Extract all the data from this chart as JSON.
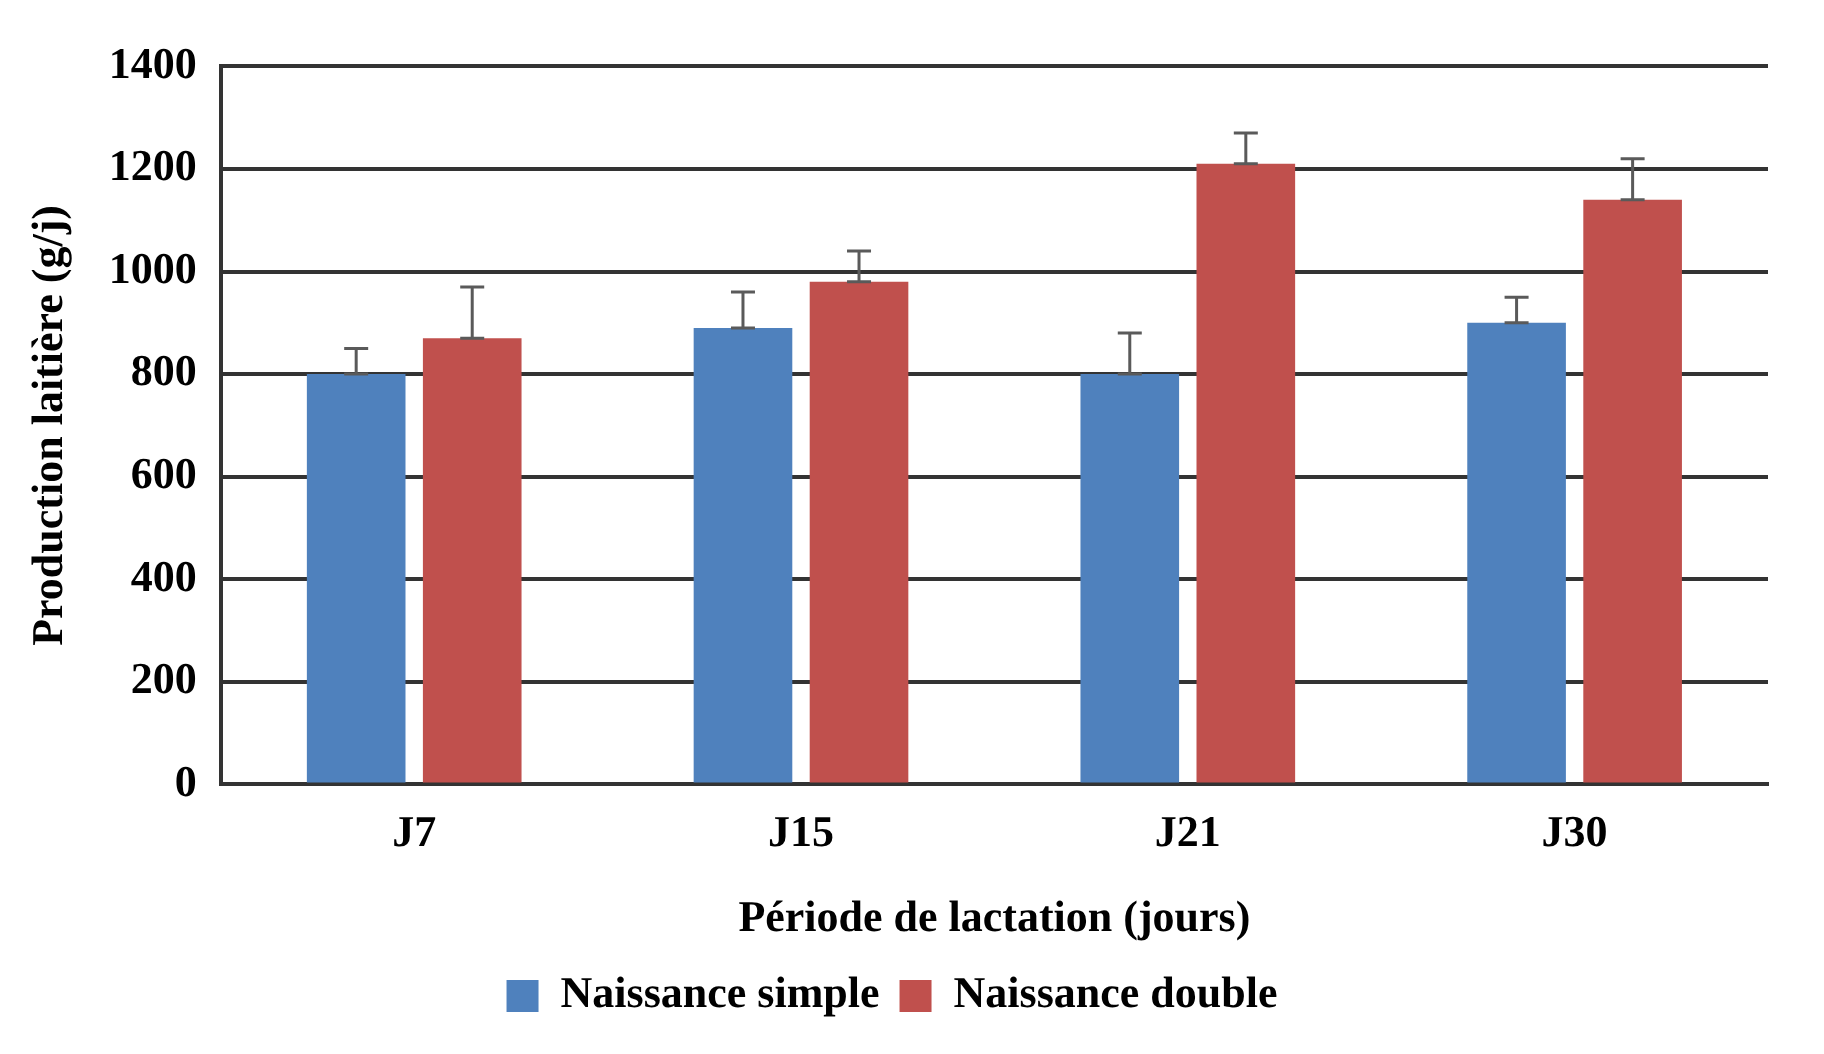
{
  "chart_data": {
    "type": "bar",
    "xlabel": "Période de lactation (jours)",
    "ylabel": "Production laitière (g/j)",
    "categories": [
      "J7",
      "J15",
      "J21",
      "J30"
    ],
    "series": [
      {
        "name": "Naissance simple",
        "color": "#4f81bd",
        "values": [
          800,
          890,
          800,
          900
        ],
        "errors": [
          [
            800,
            850
          ],
          [
            890,
            960
          ],
          [
            800,
            880
          ],
          [
            900,
            950
          ]
        ]
      },
      {
        "name": "Naissance double",
        "color": "#c0504d",
        "values": [
          870,
          980,
          1210,
          1140
        ],
        "errors": [
          [
            870,
            970
          ],
          [
            980,
            1040
          ],
          [
            1210,
            1270
          ],
          [
            1140,
            1220
          ]
        ]
      }
    ],
    "ylim": [
      0,
      1400
    ],
    "yticks": [
      0,
      200,
      400,
      600,
      800,
      1000,
      1200,
      1400
    ],
    "grid": "y",
    "legend": "bottom"
  }
}
